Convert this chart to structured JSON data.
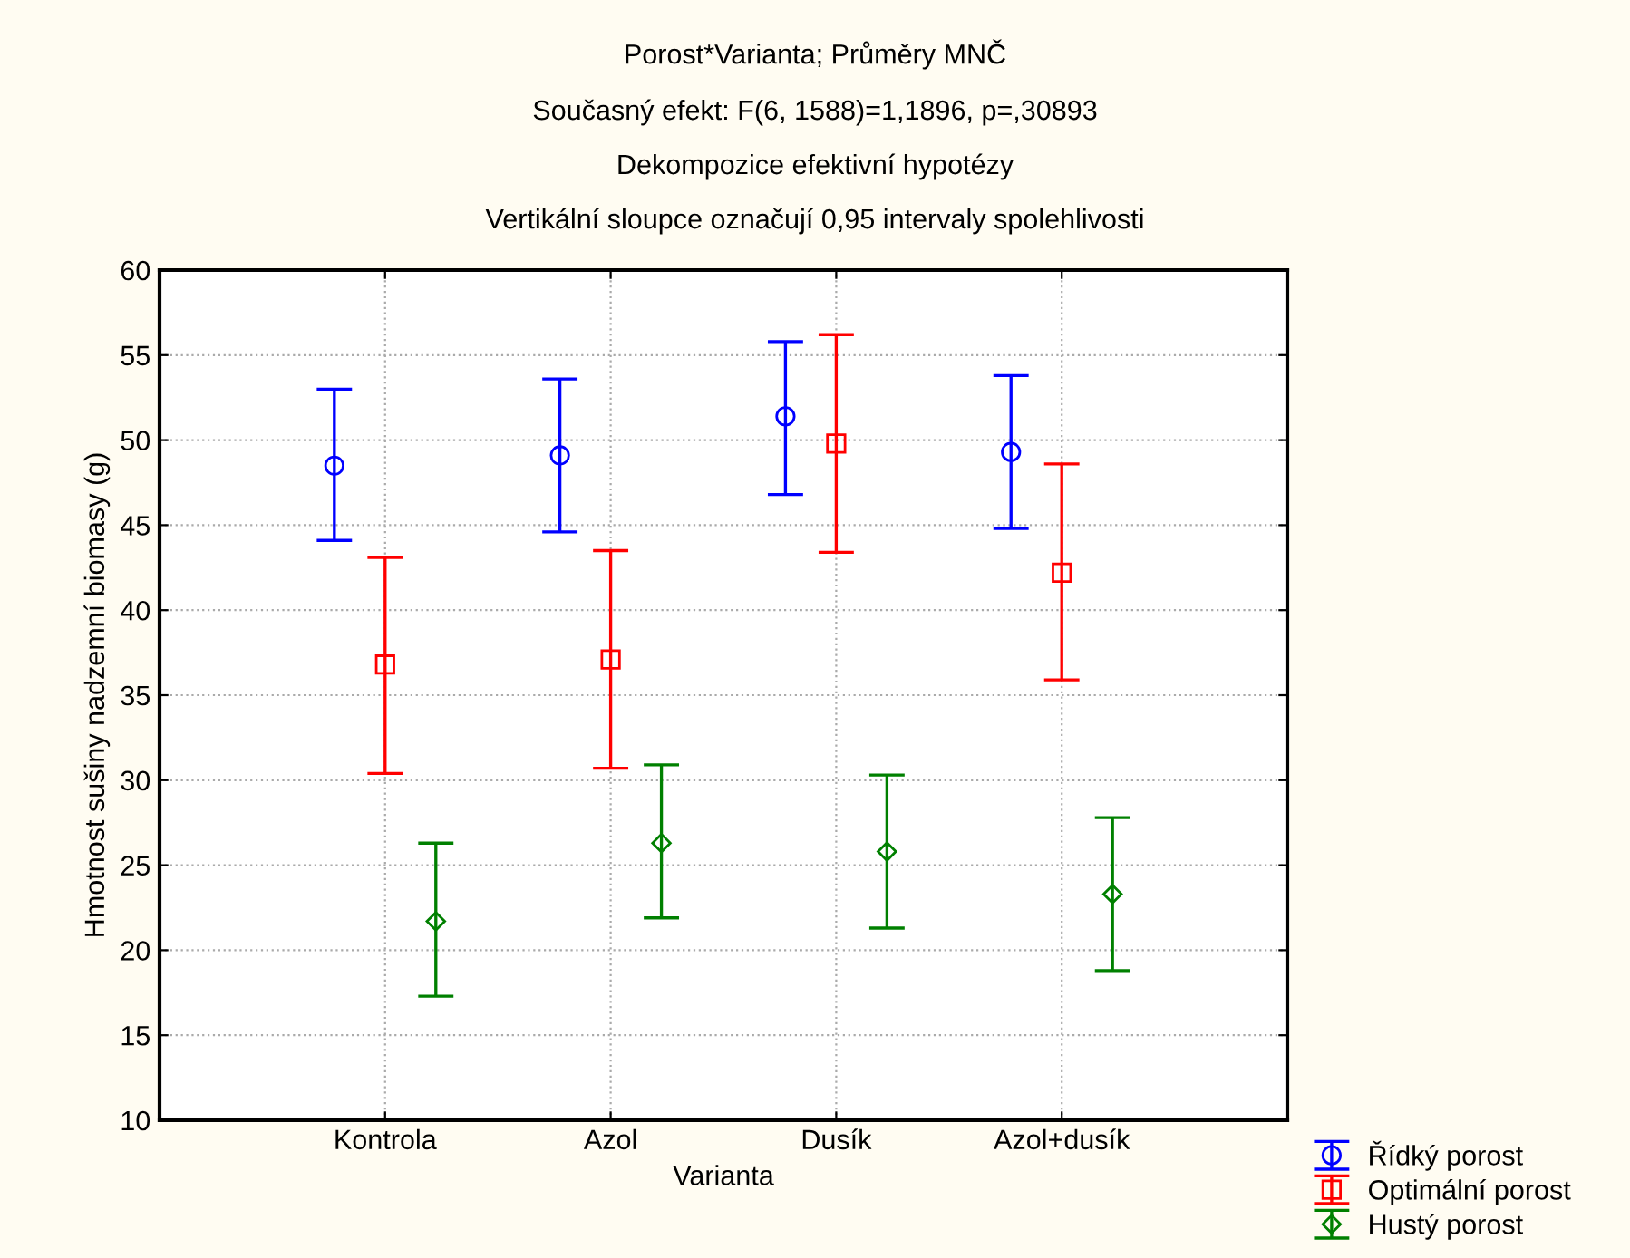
{
  "chart_data": {
    "type": "scatter",
    "title": "Porost*Varianta; Průměry MNČ",
    "subtitle": "Současný efekt: F(6, 1588)=1,1896, p=,30893\nDekompozice efektivní hypotézy\nVertikální sloupce označují 0,95 intervaly spolehlivosti",
    "xlabel": "Varianta",
    "ylabel": "Hmotnost sušiny nadzemní biomasy (g)",
    "categories": [
      "Kontrola",
      "Azol",
      "Dusík",
      "Azol+dusík"
    ],
    "series": [
      {
        "name": "Řídký porost",
        "color": "#0000ff",
        "marker": "circle",
        "values": [
          48.5,
          49.1,
          51.4,
          49.3
        ],
        "errors": [
          [
            44.1,
            53.0
          ],
          [
            44.6,
            53.6
          ],
          [
            46.8,
            55.8
          ],
          [
            44.8,
            53.8
          ]
        ]
      },
      {
        "name": "Optimální porost",
        "color": "#ff0000",
        "marker": "square",
        "values": [
          36.8,
          37.1,
          49.8,
          42.2
        ],
        "errors": [
          [
            30.4,
            43.1
          ],
          [
            30.7,
            43.5
          ],
          [
            43.4,
            56.2
          ],
          [
            35.9,
            48.6
          ]
        ]
      },
      {
        "name": "Hustý porost",
        "color": "#008000",
        "marker": "diamond",
        "values": [
          21.7,
          26.3,
          25.8,
          23.3
        ],
        "errors": [
          [
            17.3,
            26.3
          ],
          [
            21.9,
            30.9
          ],
          [
            21.3,
            30.3
          ],
          [
            18.8,
            27.8
          ]
        ]
      }
    ],
    "ylim": [
      10,
      60
    ],
    "yticks": [
      10,
      15,
      20,
      25,
      30,
      35,
      40,
      45,
      50,
      55,
      60
    ],
    "grid": true,
    "legend": "bottom right"
  }
}
